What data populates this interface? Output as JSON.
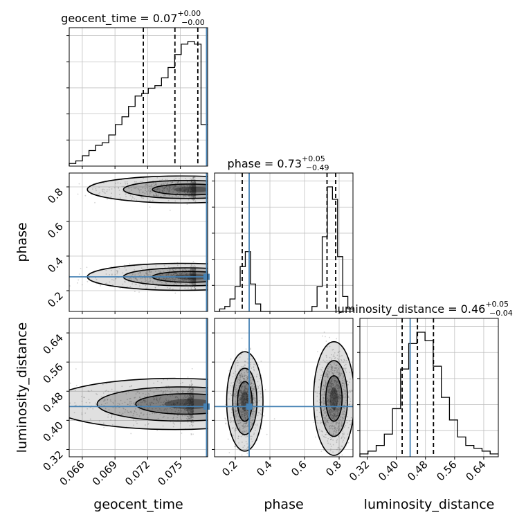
{
  "chart_data": {
    "type": "corner",
    "colors": {
      "truth": "#4682b4",
      "hist": "#000000",
      "quantile": "#000000",
      "grid": "#c0c0c0",
      "points": "#808080"
    },
    "parameters": [
      {
        "name": "geocent_time",
        "axis_label": "geocent_time",
        "range": [
          0.0648,
          0.0775
        ],
        "ticks": [
          0.066,
          0.069,
          0.072,
          0.075
        ],
        "tick_labels": [
          "0.066",
          "0.069",
          "0.072",
          "0.075"
        ],
        "truth": 0.0774,
        "quantiles": [
          0.0716,
          0.0745,
          0.0766
        ],
        "title": {
          "main": "geocent_time = 0.07",
          "upper": "+0.00",
          "lower": "−0.00"
        },
        "histogram": [
          1,
          2,
          4,
          6,
          8,
          9,
          12,
          16,
          19,
          23,
          27,
          28,
          30,
          31,
          34,
          38,
          43,
          47,
          48,
          47,
          16
        ]
      },
      {
        "name": "phase",
        "axis_label": "phase",
        "range": [
          0.08,
          0.88
        ],
        "ticks": [
          0.2,
          0.4,
          0.6,
          0.8
        ],
        "tick_labels": [
          "0.2",
          "0.4",
          "0.6",
          "0.8"
        ],
        "truth": 0.28,
        "quantiles": [
          0.24,
          0.73,
          0.78
        ],
        "title": {
          "main": "phase = 0.73",
          "upper": "+0.05",
          "lower": "−0.49"
        },
        "histogram": [
          0,
          1,
          2,
          5,
          10,
          18,
          24,
          11,
          3,
          0,
          0,
          0,
          0,
          0,
          0,
          0,
          0,
          0,
          0,
          2,
          10,
          30,
          50,
          45,
          22,
          6,
          1
        ]
      },
      {
        "name": "luminosity_distance",
        "axis_label": "luminosity_distance",
        "range": [
          0.3,
          0.68
        ],
        "ticks": [
          0.32,
          0.4,
          0.48,
          0.56,
          0.64
        ],
        "tick_labels": [
          "0.32",
          "0.40",
          "0.48",
          "0.56",
          "0.64"
        ],
        "truth": 0.438,
        "quantiles": [
          0.416,
          0.458,
          0.502
        ],
        "title": {
          "main": "luminosity_distance = 0.46",
          "upper": "+0.05",
          "lower": "−0.04"
        },
        "histogram": [
          1,
          2,
          4,
          8,
          17,
          31,
          40,
          44,
          41,
          32,
          21,
          13,
          7,
          4,
          3,
          2,
          1
        ]
      }
    ],
    "contours_2d": [
      {
        "x": "geocent_time",
        "y": "phase",
        "clusters": [
          {
            "cx": 0.0764,
            "cy": 0.785,
            "sx": 0.0012,
            "sy": 0.02
          },
          {
            "cx": 0.0764,
            "cy": 0.28,
            "sx": 0.0012,
            "sy": 0.02
          }
        ]
      },
      {
        "x": "geocent_time",
        "y": "luminosity_distance",
        "clusters": [
          {
            "cx": 0.0762,
            "cy": 0.445,
            "sx": 0.0016,
            "sy": 0.018
          }
        ]
      },
      {
        "x": "phase",
        "y": "luminosity_distance",
        "clusters": [
          {
            "cx": 0.255,
            "cy": 0.452,
            "sx": 0.025,
            "sy": 0.035
          },
          {
            "cx": 0.77,
            "cy": 0.46,
            "sx": 0.028,
            "sy": 0.04
          }
        ]
      }
    ]
  }
}
